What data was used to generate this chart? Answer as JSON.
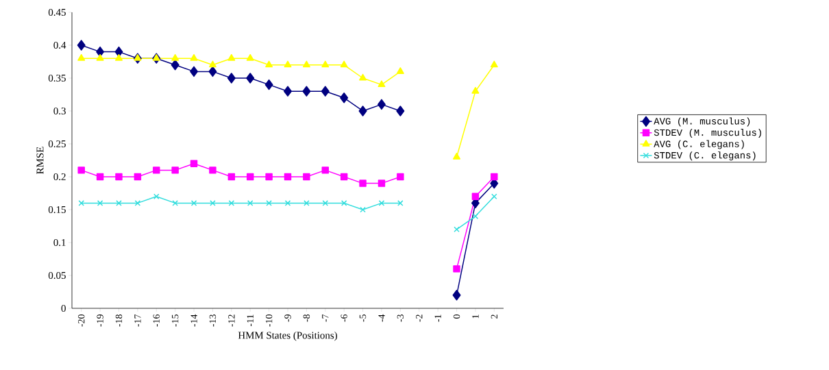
{
  "chart_data": {
    "type": "line",
    "xlabel": "HMM States (Positions)",
    "ylabel": "RMSE",
    "categories": [
      "-20",
      "-19",
      "-18",
      "-17",
      "-16",
      "-15",
      "-14",
      "-13",
      "-12",
      "-11",
      "-10",
      "-9",
      "-8",
      "-7",
      "-6",
      "-5",
      "-4",
      "-3",
      "-2",
      "-1",
      "0",
      "1",
      "2"
    ],
    "series": [
      {
        "name": "AVG (M. musculus)",
        "color": "#000080",
        "marker": "diamond",
        "values": [
          0.4,
          0.39,
          0.39,
          0.38,
          0.38,
          0.37,
          0.36,
          0.36,
          0.35,
          0.35,
          0.34,
          0.33,
          0.33,
          0.33,
          0.32,
          0.3,
          0.31,
          0.3,
          null,
          null,
          0.02,
          0.16,
          0.19
        ]
      },
      {
        "name": "STDEV (M. musculus)",
        "color": "#ff00ff",
        "marker": "square",
        "values": [
          0.21,
          0.2,
          0.2,
          0.2,
          0.21,
          0.21,
          0.22,
          0.21,
          0.2,
          0.2,
          0.2,
          0.2,
          0.2,
          0.21,
          0.2,
          0.19,
          0.19,
          0.2,
          null,
          null,
          0.06,
          0.17,
          0.2
        ]
      },
      {
        "name": "AVG (C. elegans)",
        "color": "#ffff00",
        "marker": "triangle",
        "values": [
          0.38,
          0.38,
          0.38,
          0.38,
          0.38,
          0.38,
          0.38,
          0.37,
          0.38,
          0.38,
          0.37,
          0.37,
          0.37,
          0.37,
          0.37,
          0.35,
          0.34,
          0.36,
          null,
          null,
          0.23,
          0.33,
          0.37
        ]
      },
      {
        "name": "STDEV (C. elegans)",
        "color": "#33dddd",
        "marker": "cross",
        "values": [
          0.16,
          0.16,
          0.16,
          0.16,
          0.17,
          0.16,
          0.16,
          0.16,
          0.16,
          0.16,
          0.16,
          0.16,
          0.16,
          0.16,
          0.16,
          0.15,
          0.16,
          0.16,
          null,
          null,
          0.12,
          0.14,
          0.17
        ]
      }
    ],
    "ylim": [
      0,
      0.45
    ],
    "yticks": [
      0,
      0.05,
      0.1,
      0.15,
      0.2,
      0.25,
      0.3,
      0.35,
      0.4,
      0.45
    ],
    "grid": false,
    "legend": "right",
    "line_style": "solid"
  }
}
